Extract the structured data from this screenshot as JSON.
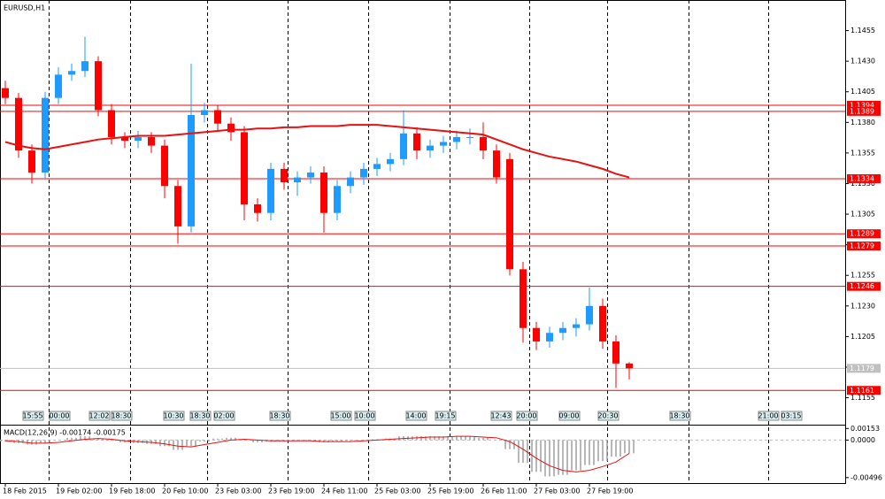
{
  "chart_data": [
    {
      "type": "candlestick",
      "title": "EURUSD,H1",
      "categories": [
        "18 Feb 2015",
        null,
        null,
        null,
        "19 Feb 02:00",
        null,
        null,
        null,
        "19 Feb 18:00",
        null,
        null,
        null,
        "20 Feb 10:00",
        null,
        null,
        null,
        "23 Feb 03:00",
        null,
        null,
        null,
        "23 Feb 19:00",
        null,
        null,
        null,
        "24 Feb 11:00",
        null,
        null,
        null,
        "25 Feb 03:00",
        null,
        null,
        null,
        "25 Feb 19:00",
        null,
        null,
        null,
        "26 Feb 11:00",
        null,
        null,
        null,
        "27 Feb 03:00",
        null,
        null,
        null,
        "27 Feb 19:00",
        null,
        null,
        null
      ],
      "open": [
        1.1408,
        1.14,
        1.1357,
        1.1339,
        1.14,
        1.1419,
        1.1422,
        1.143,
        1.139,
        1.1368,
        1.1365,
        1.1368,
        1.1361,
        1.1328,
        1.1295,
        1.1386,
        1.139,
        1.1379,
        1.1372,
        1.1313,
        1.1306,
        1.1342,
        1.1331,
        1.1335,
        1.1339,
        1.1306,
        1.1328,
        1.1335,
        1.1342,
        1.1346,
        1.135,
        1.1371,
        1.1357,
        1.1361,
        1.1364,
        1.1368,
        1.1368,
        1.1357,
        1.135,
        1.126,
        1.1212,
        1.1201,
        1.1208,
        1.1212,
        1.1215,
        1.123,
        1.1201,
        1.1183
      ],
      "high": [
        1.1414,
        1.1404,
        1.1362,
        1.1405,
        1.1425,
        1.1428,
        1.145,
        1.1434,
        1.1395,
        1.1372,
        1.1373,
        1.1372,
        1.1366,
        1.1333,
        1.1428,
        1.1396,
        1.1394,
        1.1384,
        1.1377,
        1.1318,
        1.1347,
        1.1347,
        1.134,
        1.1344,
        1.1344,
        1.1333,
        1.134,
        1.1347,
        1.1351,
        1.1355,
        1.139,
        1.1376,
        1.1366,
        1.1369,
        1.1373,
        1.1375,
        1.138,
        1.1362,
        1.1355,
        1.1266,
        1.1217,
        1.1213,
        1.1217,
        1.122,
        1.1245,
        1.1236,
        1.1206,
        1.1184
      ],
      "low": [
        1.1395,
        1.1351,
        1.133,
        1.1334,
        1.1395,
        1.1414,
        1.1417,
        1.1385,
        1.1362,
        1.1359,
        1.1359,
        1.1355,
        1.1318,
        1.1281,
        1.129,
        1.138,
        1.1373,
        1.1365,
        1.13,
        1.1299,
        1.13,
        1.1325,
        1.132,
        1.133,
        1.129,
        1.13,
        1.1322,
        1.1329,
        1.1336,
        1.134,
        1.1345,
        1.135,
        1.1351,
        1.1355,
        1.1358,
        1.1362,
        1.135,
        1.133,
        1.1255,
        1.12,
        1.1194,
        1.1196,
        1.1202,
        1.1205,
        1.121,
        1.1195,
        1.1163,
        1.117
      ],
      "close": [
        1.14,
        1.1357,
        1.1339,
        1.14,
        1.1419,
        1.1422,
        1.143,
        1.139,
        1.1368,
        1.1365,
        1.1368,
        1.1361,
        1.1328,
        1.1295,
        1.1386,
        1.139,
        1.1379,
        1.1372,
        1.1313,
        1.1306,
        1.1342,
        1.1331,
        1.1335,
        1.1339,
        1.1306,
        1.1328,
        1.1335,
        1.1342,
        1.1346,
        1.135,
        1.1371,
        1.1357,
        1.1361,
        1.1364,
        1.1368,
        1.1368,
        1.1357,
        1.1335,
        1.126,
        1.1212,
        1.1201,
        1.1208,
        1.1212,
        1.1215,
        1.123,
        1.1201,
        1.1183,
        1.1179
      ],
      "up_color": "#1e9bff",
      "down_color": "#ff0000",
      "moving_average": {
        "color": "#e81010",
        "values": [
          1.1364,
          1.1361,
          1.1359,
          1.1358,
          1.136,
          1.1362,
          1.1364,
          1.1366,
          1.1367,
          1.1368,
          1.1369,
          1.1369,
          1.1369,
          1.137,
          1.1371,
          1.1372,
          1.1373,
          1.1374,
          1.1374,
          1.1375,
          1.1375,
          1.1376,
          1.1376,
          1.1377,
          1.1377,
          1.1377,
          1.1378,
          1.1378,
          1.1378,
          1.1377,
          1.1376,
          1.1375,
          1.1374,
          1.1373,
          1.1372,
          1.1371,
          1.137,
          1.1366,
          1.1362,
          1.1358,
          1.1355,
          1.1352,
          1.135,
          1.1348,
          1.1345,
          1.1342,
          1.1338,
          1.1335
        ]
      },
      "levels": [
        1.1394,
        1.1389,
        1.1334,
        1.1289,
        1.1279,
        1.1246,
        1.1161
      ],
      "level_color": "#ff0000",
      "current_price": 1.1179,
      "ylim": [
        1.1146,
        1.148
      ],
      "yticks": [
        1.1455,
        {
          "value": 1.143,
          "label": "1.1430"
        },
        1.1405,
        {
          "value": 1.138,
          "label": "1.1380"
        },
        1.1355,
        {
          "value": 1.133,
          "label": "1.1330"
        },
        1.1305,
        {
          "value": 1.128,
          "label": "1.1280"
        },
        1.1255,
        {
          "value": 1.123,
          "label": "1.1230"
        },
        1.1205,
        {
          "value": 1.118,
          "label": "1.1180"
        },
        1.1155
      ],
      "event_labels": [
        "15:55",
        "00:00",
        "12:02",
        "18:30",
        "10:30",
        "18:30",
        "02:00",
        "18:30",
        "15:00",
        "10:00",
        "14:00",
        "19:15",
        "12:43",
        "20:00",
        "09:00",
        "20:30",
        "18:30",
        "21:00",
        "03:15"
      ]
    },
    {
      "type": "macd",
      "title": "MACD(12,26,9) -0.00174 -0.00175",
      "histogram": [
        -0.0002,
        -0.0004,
        -0.0006,
        -0.0004,
        0.0,
        0.0003,
        0.0005,
        0.0002,
        -0.0001,
        -0.0003,
        -0.0004,
        -0.0005,
        -0.0008,
        -0.0013,
        -0.0008,
        -0.0002,
        0.0002,
        0.0003,
        0.0,
        -0.0003,
        -0.0002,
        -0.0002,
        -0.0001,
        -0.0001,
        -0.0003,
        -0.0002,
        -0.0001,
        0.0,
        0.0001,
        0.0002,
        0.0005,
        0.0005,
        0.0005,
        0.0005,
        0.0005,
        0.0005,
        0.0003,
        0.0,
        -0.0012,
        -0.003,
        -0.0042,
        -0.0048,
        -0.0046,
        -0.004,
        -0.0033,
        -0.0028,
        -0.0022,
        -0.00174
      ],
      "signal": [
        -0.0001,
        -0.0002,
        -0.0004,
        -0.0004,
        -0.0003,
        -0.0001,
        0.0001,
        0.0002,
        0.0001,
        -0.0001,
        -0.0002,
        -0.0003,
        -0.0005,
        -0.0008,
        -0.0009,
        -0.0006,
        -0.0003,
        0.0,
        0.0001,
        0.0,
        -0.0001,
        -0.0001,
        -0.0001,
        -0.0001,
        -0.0002,
        -0.0002,
        -0.0002,
        -0.0001,
        0.0,
        0.0001,
        0.0002,
        0.0003,
        0.0004,
        0.0004,
        0.0005,
        0.0005,
        0.0004,
        0.0003,
        -0.0002,
        -0.0012,
        -0.0024,
        -0.0034,
        -0.004,
        -0.0042,
        -0.004,
        -0.0035,
        -0.0029,
        -0.00175
      ],
      "histogram_color": "#a0a0a0",
      "signal_color": "#e81010",
      "ylim": [
        -0.0058,
        0.0018
      ],
      "yticks": [
        0.00153,
        {
          "value": 0,
          "label": "0.0000"
        },
        -0.00496
      ]
    }
  ]
}
